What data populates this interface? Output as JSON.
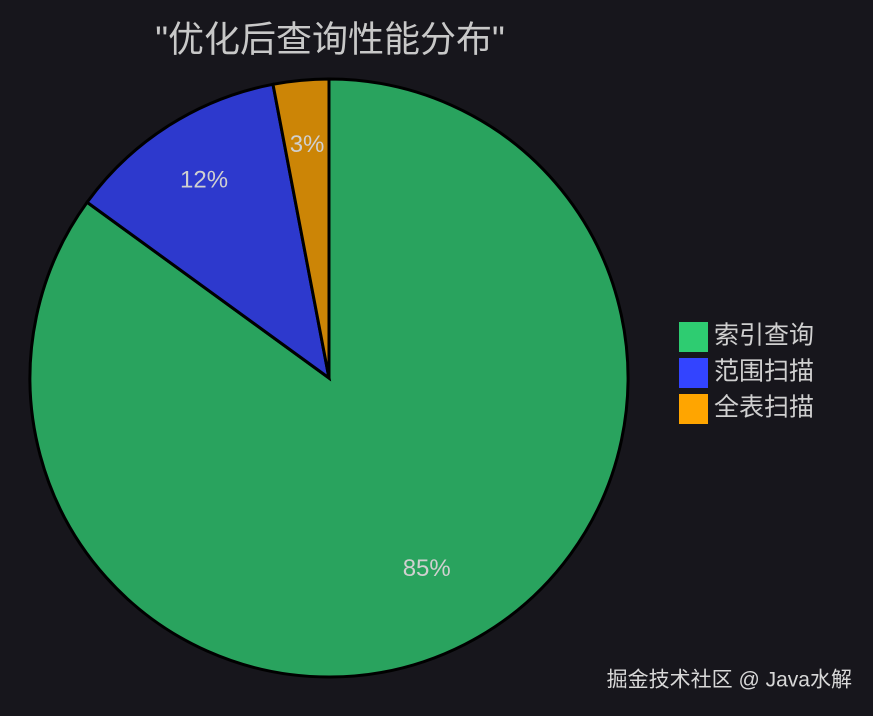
{
  "chart_data": {
    "type": "pie",
    "title": "\"优化后查询性能分布\"",
    "categories": [
      "索引查询",
      "范围扫描",
      "全表扫描"
    ],
    "values": [
      85,
      12,
      3
    ],
    "value_labels": [
      "85%",
      "12%",
      "3%"
    ],
    "colors": [
      "#2ecc71",
      "#3344ff",
      "#ffa500"
    ],
    "legend": "right",
    "annotation": "掘金技术社区 @ Java水解"
  }
}
